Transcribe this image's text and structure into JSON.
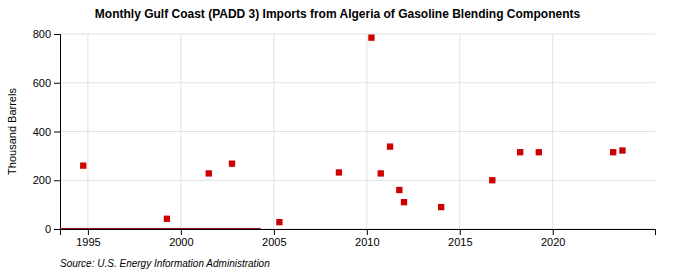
{
  "chart_data": {
    "type": "scatter",
    "title": "Monthly Gulf Coast (PADD 3) Imports from Algeria of Gasoline Blending Components",
    "ylabel": "Thousand Barrels",
    "annotations": [
      "Source: U.S. Energy Information Administration"
    ],
    "xlim": [
      1993.5,
      2025.5
    ],
    "ylim": [
      0,
      800
    ],
    "xticks": [
      1995,
      2000,
      2005,
      2010,
      2015,
      2020
    ],
    "yticks": [
      0,
      200,
      400,
      600,
      800
    ],
    "grid": true,
    "series": [
      {
        "type": "line",
        "color": "#8b1a1a",
        "line_style": "solid",
        "x": [
          1993.5,
          2004.3
        ],
        "values": [
          0,
          0
        ]
      },
      {
        "type": "scatter",
        "color": "#cc0000",
        "marker": "square",
        "x": [
          1994.75,
          1999.25,
          2001.5,
          2002.75,
          2005.3,
          2008.5,
          2010.25,
          2010.75,
          2011.25,
          2011.75,
          2012.0,
          2014.0,
          2016.75,
          2018.25,
          2019.25,
          2023.25,
          2023.75
        ],
        "values": [
          260,
          42,
          228,
          268,
          28,
          232,
          785,
          228,
          338,
          160,
          110,
          90,
          200,
          315,
          315,
          315,
          322
        ]
      }
    ]
  }
}
